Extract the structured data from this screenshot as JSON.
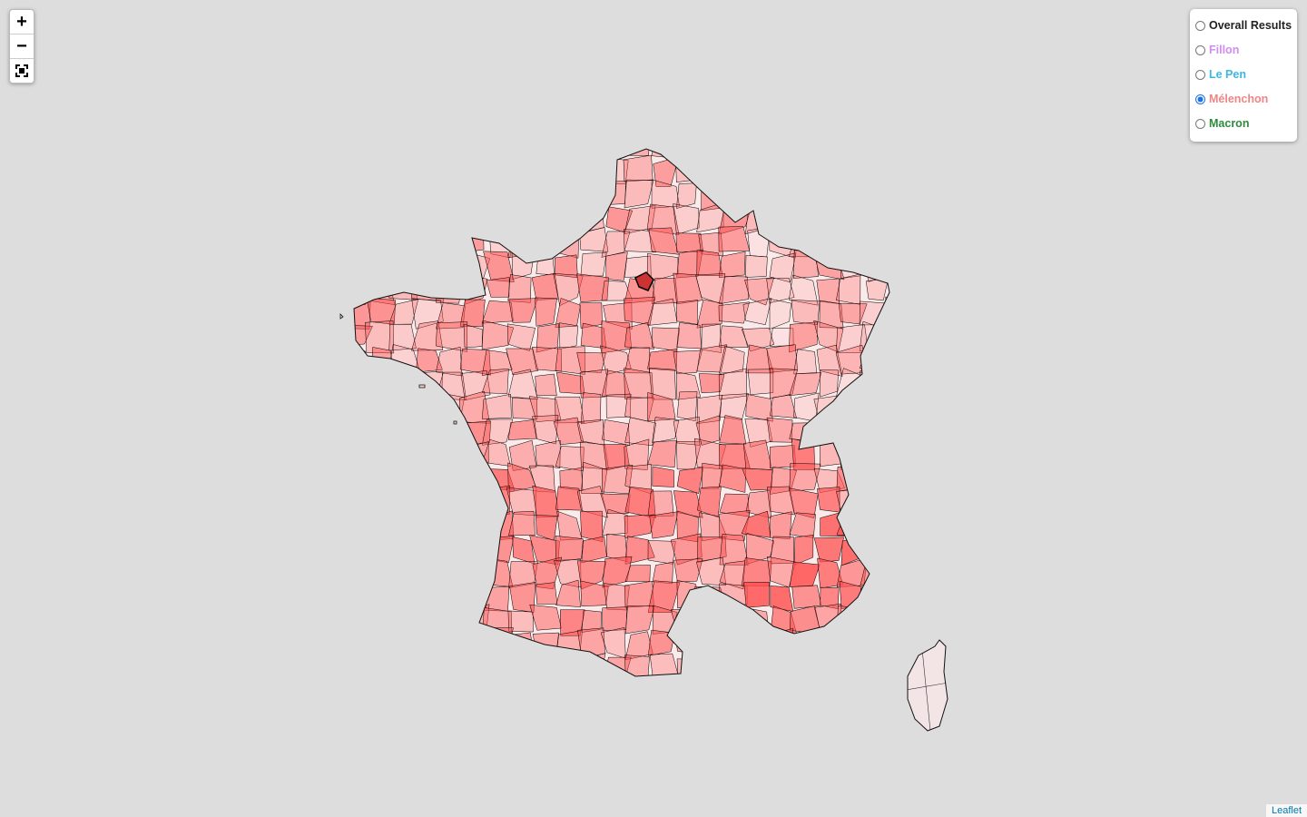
{
  "zoom": {
    "in_label": "+",
    "out_label": "−"
  },
  "layers": [
    {
      "label": "Overall Results",
      "color": "#222222",
      "selected": false
    },
    {
      "label": "Fillon",
      "color": "#d08cf0",
      "selected": false
    },
    {
      "label": "Le Pen",
      "color": "#3bb7e0",
      "selected": false
    },
    {
      "label": "Mélenchon",
      "color": "#f08585",
      "selected": true
    },
    {
      "label": "Macron",
      "color": "#2e8b3e",
      "selected": false
    }
  ],
  "attribution": "Leaflet",
  "map": {
    "fill_color": "#ff5050",
    "stroke_color": "#000000",
    "selected_layer": "Mélenchon"
  }
}
